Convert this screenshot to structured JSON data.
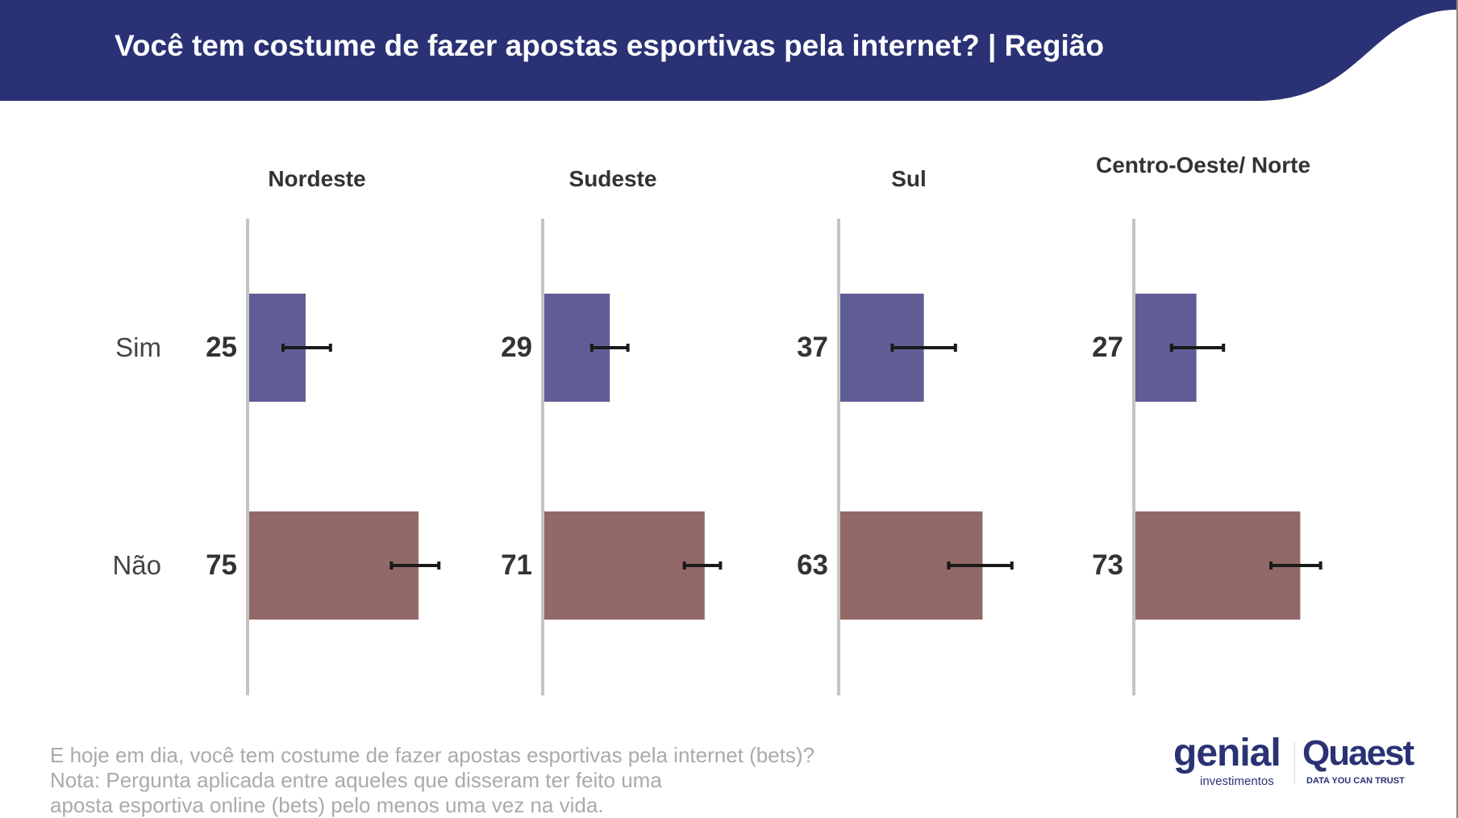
{
  "header": {
    "title": "Você tem costume de fazer apostas esportivas pela internet? | Região"
  },
  "colors": {
    "header": "#2a3275",
    "sim": "#605d96",
    "nao": "#926967",
    "axis": "#c4c4c4",
    "errorbar": "#1a1a1a"
  },
  "chart_data": {
    "type": "bar",
    "orientation": "horizontal",
    "panels": [
      {
        "title": "Nordeste",
        "values": [
          25,
          75
        ],
        "error": [
          [
            15,
            36
          ],
          [
            63,
            84
          ]
        ]
      },
      {
        "title": "Sudeste",
        "values": [
          29,
          71
        ],
        "error": [
          [
            21,
            37
          ],
          [
            62,
            78
          ]
        ]
      },
      {
        "title": "Sul",
        "values": [
          37,
          63
        ],
        "error": [
          [
            23,
            51
          ],
          [
            48,
            76
          ]
        ]
      },
      {
        "title": "Centro-Oeste/ Norte",
        "values": [
          27,
          73
        ],
        "error": [
          [
            16,
            39
          ],
          [
            60,
            82
          ]
        ]
      }
    ],
    "categories": [
      "Sim",
      "Não"
    ],
    "xlim": [
      0,
      100
    ],
    "grid": false,
    "legend": "none"
  },
  "footer": {
    "lines": [
      "E hoje em dia, você tem costume de fazer apostas esportivas pela internet (bets)?",
      "Nota: Pergunta aplicada entre aqueles que disseram ter feito uma",
      "aposta esportiva online (bets) pelo menos uma vez na vida."
    ]
  },
  "logos": {
    "genial": "genial",
    "genial_sub": "investimentos",
    "quaest": "Quaest",
    "quaest_sub": "DATA YOU CAN TRUST"
  }
}
